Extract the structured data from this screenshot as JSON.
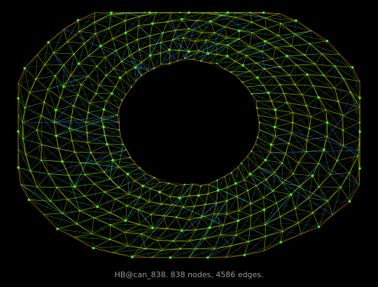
{
  "caption": "HB@can_838. 838 nodes, 4586 edges.",
  "graph": {
    "name": "HB@can_838",
    "node_count": 838,
    "edge_count": 4586,
    "layout_shape": "annular mesh ring with central hole",
    "colors": {
      "background": "#000000",
      "long_edge": "#2060ff",
      "mid_edge": "#22d4c8",
      "short_edge": "#c8e000",
      "outer_edge": "#e07018",
      "node": "#40ff40",
      "caption_text": "#9a9a9a"
    }
  }
}
